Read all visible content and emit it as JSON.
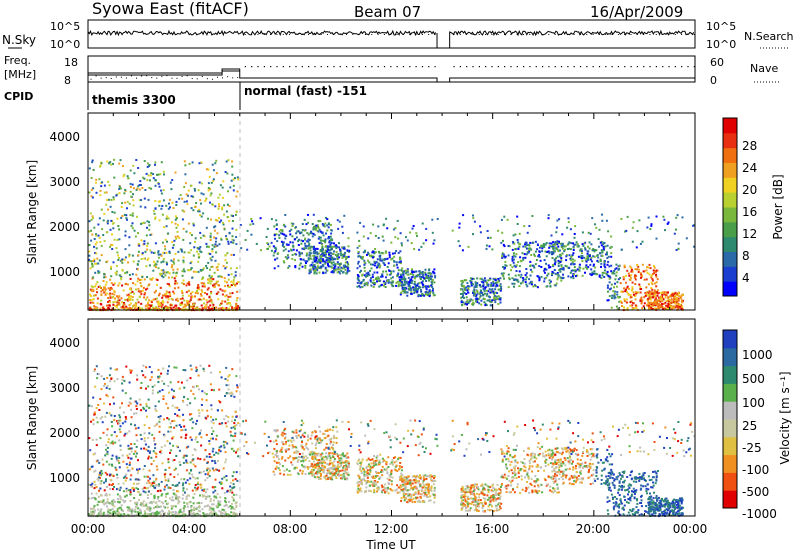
{
  "header": {
    "station": "Syowa East (fitACF)",
    "beam": "Beam 07",
    "date": "16/Apr/2009"
  },
  "nsky_panel": {
    "left_label": "N.Sky",
    "right_label": "N.Search",
    "tick_labels_left": [
      "10^5",
      "10^0"
    ],
    "tick_labels_right": [
      "10^5",
      "10^0"
    ]
  },
  "freq_panel": {
    "left_label_line1": "Freq.",
    "left_label_line2": "[MHz]",
    "left_ticks": [
      "18",
      "8"
    ],
    "right_label": "Nave",
    "right_ticks": [
      "60",
      "0"
    ]
  },
  "cpid_panel": {
    "label": "CPID",
    "modes": [
      {
        "name": "themis 3300",
        "start_hour": 0,
        "end_hour": 6
      },
      {
        "name": "normal (fast) -151",
        "start_hour": 6,
        "end_hour": 24
      }
    ]
  },
  "x_axis": {
    "label": "Time UT",
    "ticks": [
      "00:00",
      "04:00",
      "08:00",
      "12:00",
      "16:00",
      "20:00",
      "00:00"
    ]
  },
  "power_panel": {
    "ylabel": "Slant Range [km]",
    "yticks": [
      "4000",
      "3000",
      "2000",
      "1000"
    ],
    "colorbar_label": "Power [dB]",
    "colorbar_ticks": [
      "28",
      "24",
      "20",
      "16",
      "12",
      "8",
      "4"
    ],
    "colors": [
      "#0000ff",
      "#1a3fd0",
      "#2a6aa8",
      "#2e8a6e",
      "#4a9e4a",
      "#7ab83c",
      "#b8d030",
      "#f0d020",
      "#f0a020",
      "#f07010",
      "#e83010",
      "#e00000"
    ]
  },
  "velocity_panel": {
    "ylabel": "Slant Range [km]",
    "yticks": [
      "4000",
      "3000",
      "2000",
      "1000"
    ],
    "colorbar_label": "Velocity [m s⁻¹]",
    "colorbar_ticks": [
      "1000",
      "500",
      "100",
      "25",
      "-25",
      "-100",
      "-500",
      "-1000"
    ],
    "colors": [
      "#2040c0",
      "#2a6aa0",
      "#2e8a6e",
      "#5ab04a",
      "#bcbcbc",
      "#c8c8a0",
      "#e0c040",
      "#f09020",
      "#f05010",
      "#e00000"
    ]
  },
  "chart_data": {
    "type": "heatmap",
    "x_range_hours": [
      0,
      24
    ],
    "y_range_km": [
      180,
      4500
    ],
    "data_gap_hours": [
      13.8,
      14.3
    ],
    "mode_change_hour": 6
  }
}
